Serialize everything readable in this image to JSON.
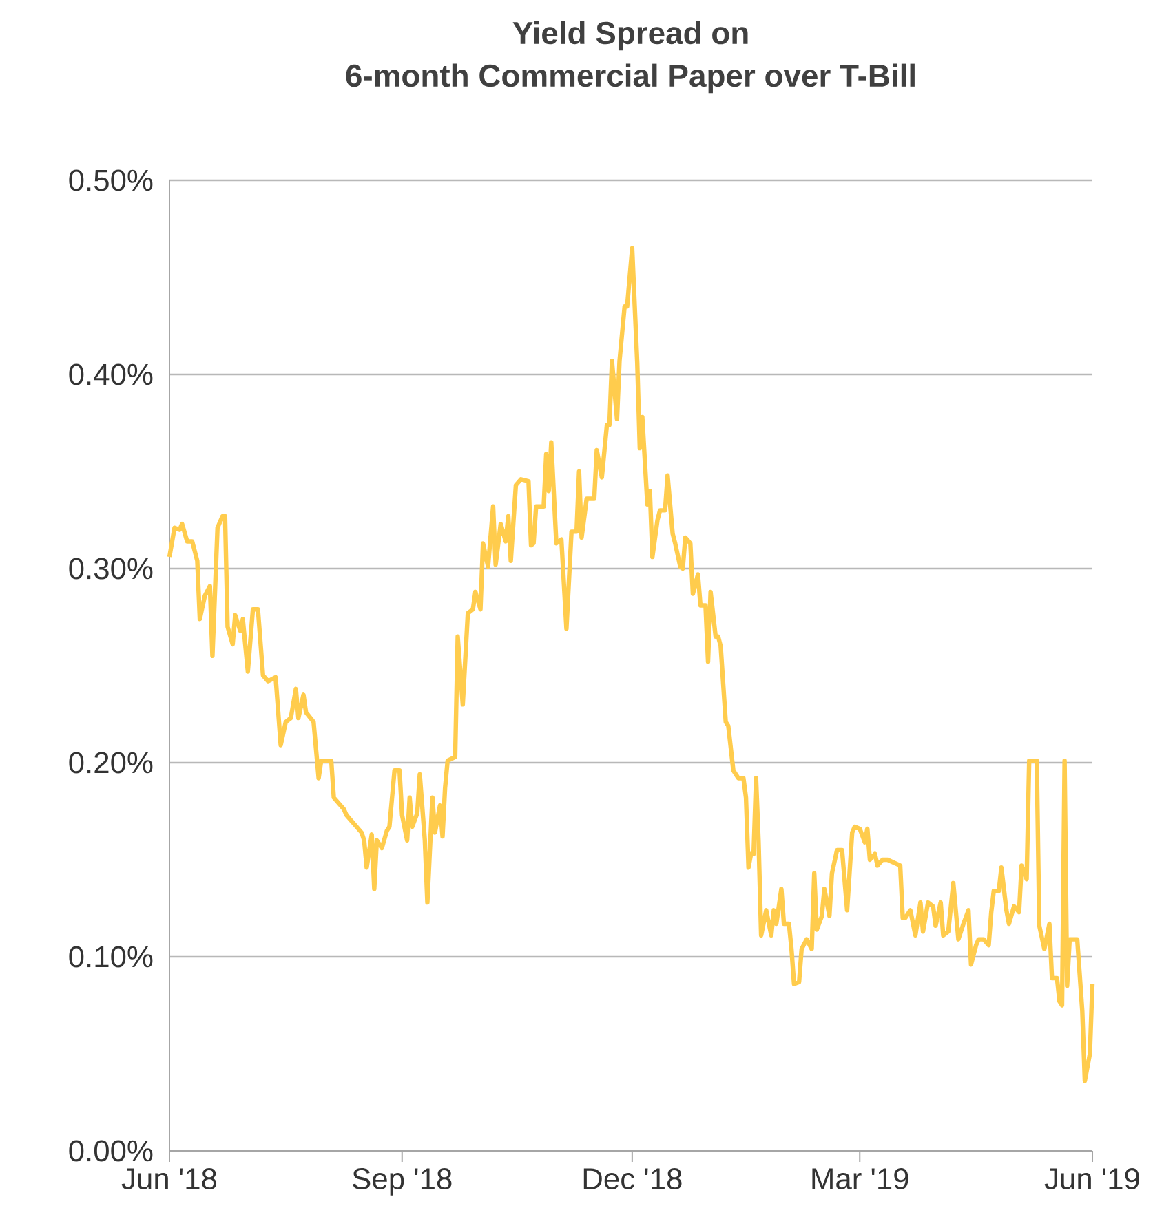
{
  "chart_data": {
    "type": "line",
    "title": "Yield Spread on",
    "subtitle": "6-month Commercial Paper over T-Bill",
    "xlim": [
      "2018-06-01",
      "2019-06-01"
    ],
    "xticks": [
      {
        "value": "2018-06-01",
        "label": "Jun '18"
      },
      {
        "value": "2018-09-01",
        "label": "Sep '18"
      },
      {
        "value": "2018-12-01",
        "label": "Dec '18"
      },
      {
        "value": "2019-03-01",
        "label": "Mar '19"
      },
      {
        "value": "2019-06-01",
        "label": "Jun '19"
      }
    ],
    "ylim": [
      0,
      0.5
    ],
    "yticks": [
      {
        "value": 0,
        "label": "0.00%"
      },
      {
        "value": 0.1,
        "label": "0.10%"
      },
      {
        "value": 0.2,
        "label": "0.20%"
      },
      {
        "value": 0.3,
        "label": "0.30%"
      },
      {
        "value": 0.4,
        "label": "0.40%"
      },
      {
        "value": 0.5,
        "label": "0.50%"
      }
    ],
    "grid": "y",
    "marker": "none",
    "line_style": "solid",
    "series": [
      {
        "color": "#ffcc4d",
        "x": [
          "2018-06-01",
          "2018-06-03",
          "2018-06-05",
          "2018-06-06",
          "2018-06-08",
          "2018-06-10",
          "2018-06-12",
          "2018-06-13",
          "2018-06-15",
          "2018-06-17",
          "2018-06-18",
          "2018-06-20",
          "2018-06-22",
          "2018-06-23",
          "2018-06-24",
          "2018-06-26",
          "2018-06-27",
          "2018-06-29",
          "2018-06-30",
          "2018-07-02",
          "2018-07-04",
          "2018-07-06",
          "2018-07-08",
          "2018-07-10",
          "2018-07-13",
          "2018-07-15",
          "2018-07-17",
          "2018-07-19",
          "2018-07-21",
          "2018-07-22",
          "2018-07-24",
          "2018-07-25",
          "2018-07-28",
          "2018-07-30",
          "2018-07-31",
          "2018-08-04",
          "2018-08-05",
          "2018-08-07",
          "2018-08-09",
          "2018-08-10",
          "2018-08-12",
          "2018-08-14",
          "2018-08-16",
          "2018-08-17",
          "2018-08-18",
          "2018-08-20",
          "2018-08-21",
          "2018-08-22",
          "2018-08-24",
          "2018-08-26",
          "2018-08-27",
          "2018-08-29",
          "2018-08-31",
          "2018-09-01",
          "2018-09-03",
          "2018-09-04",
          "2018-09-05",
          "2018-09-07",
          "2018-09-08",
          "2018-09-10",
          "2018-09-11",
          "2018-09-13",
          "2018-09-14",
          "2018-09-16",
          "2018-09-17",
          "2018-09-18",
          "2018-09-19",
          "2018-09-22",
          "2018-09-23",
          "2018-09-25",
          "2018-09-27",
          "2018-09-29",
          "2018-09-30",
          "2018-10-02",
          "2018-10-03",
          "2018-10-05",
          "2018-10-07",
          "2018-10-08",
          "2018-10-10",
          "2018-10-12",
          "2018-10-13",
          "2018-10-14",
          "2018-10-16",
          "2018-10-18",
          "2018-10-21",
          "2018-10-22",
          "2018-10-23",
          "2018-10-24",
          "2018-10-27",
          "2018-10-28",
          "2018-10-29",
          "2018-10-30",
          "2018-11-01",
          "2018-11-03",
          "2018-11-05",
          "2018-11-07",
          "2018-11-09",
          "2018-11-10",
          "2018-11-11",
          "2018-11-13",
          "2018-11-16",
          "2018-11-17",
          "2018-11-19",
          "2018-11-21",
          "2018-11-22",
          "2018-11-23",
          "2018-11-25",
          "2018-11-26",
          "2018-11-28",
          "2018-11-29",
          "2018-12-01",
          "2018-12-03",
          "2018-12-04",
          "2018-12-05",
          "2018-12-07",
          "2018-12-08",
          "2018-12-09",
          "2018-12-11",
          "2018-12-12",
          "2018-12-14",
          "2018-12-15",
          "2018-12-17",
          "2018-12-18",
          "2018-12-20",
          "2018-12-21",
          "2018-12-22",
          "2018-12-24",
          "2018-12-25",
          "2018-12-27",
          "2018-12-28",
          "2018-12-30",
          "2018-12-31",
          "2019-01-01",
          "2019-01-03",
          "2019-01-04",
          "2019-01-05",
          "2019-01-07",
          "2019-01-08",
          "2019-01-10",
          "2019-01-12",
          "2019-01-14",
          "2019-01-15",
          "2019-01-16",
          "2019-01-17",
          "2019-01-18",
          "2019-01-19",
          "2019-01-20",
          "2019-01-21",
          "2019-01-23",
          "2019-01-25",
          "2019-01-26",
          "2019-01-27",
          "2019-01-29",
          "2019-01-30",
          "2019-02-01",
          "2019-02-02",
          "2019-02-03",
          "2019-02-05",
          "2019-02-06",
          "2019-02-08",
          "2019-02-10",
          "2019-02-11",
          "2019-02-12",
          "2019-02-14",
          "2019-02-15",
          "2019-02-17",
          "2019-02-18",
          "2019-02-20",
          "2019-02-22",
          "2019-02-24",
          "2019-02-26",
          "2019-02-27",
          "2019-03-01",
          "2019-03-03",
          "2019-03-04",
          "2019-03-05",
          "2019-03-07",
          "2019-03-08",
          "2019-03-10",
          "2019-03-12",
          "2019-03-17",
          "2019-03-18",
          "2019-03-19",
          "2019-03-21",
          "2019-03-23",
          "2019-03-25",
          "2019-03-26",
          "2019-03-28",
          "2019-03-30",
          "2019-03-31",
          "2019-04-02",
          "2019-04-03",
          "2019-04-05",
          "2019-04-07",
          "2019-04-09",
          "2019-04-11",
          "2019-04-13",
          "2019-04-14",
          "2019-04-16",
          "2019-04-17",
          "2019-04-19",
          "2019-04-21",
          "2019-04-22",
          "2019-04-23",
          "2019-04-25",
          "2019-04-26",
          "2019-04-28",
          "2019-04-29",
          "2019-05-01",
          "2019-05-03",
          "2019-05-04",
          "2019-05-06",
          "2019-05-07",
          "2019-05-09",
          "2019-05-10",
          "2019-05-11",
          "2019-05-13",
          "2019-05-15",
          "2019-05-16",
          "2019-05-18",
          "2019-05-19",
          "2019-05-20",
          "2019-05-21",
          "2019-05-22",
          "2019-05-23",
          "2019-05-26",
          "2019-05-28",
          "2019-05-29",
          "2019-05-31",
          "2019-06-01"
        ],
        "values": [
          0.306,
          0.321,
          0.32,
          0.323,
          0.314,
          0.314,
          0.304,
          0.274,
          0.286,
          0.291,
          0.255,
          0.321,
          0.327,
          0.327,
          0.27,
          0.261,
          0.276,
          0.268,
          0.274,
          0.247,
          0.279,
          0.279,
          0.245,
          0.242,
          0.244,
          0.209,
          0.221,
          0.223,
          0.238,
          0.223,
          0.235,
          0.226,
          0.221,
          0.192,
          0.201,
          0.201,
          0.182,
          0.179,
          0.176,
          0.173,
          0.17,
          0.167,
          0.164,
          0.16,
          0.146,
          0.163,
          0.135,
          0.16,
          0.156,
          0.165,
          0.167,
          0.196,
          0.196,
          0.173,
          0.16,
          0.182,
          0.167,
          0.174,
          0.194,
          0.16,
          0.128,
          0.182,
          0.164,
          0.178,
          0.162,
          0.187,
          0.201,
          0.203,
          0.265,
          0.23,
          0.277,
          0.279,
          0.288,
          0.279,
          0.313,
          0.301,
          0.332,
          0.302,
          0.323,
          0.314,
          0.327,
          0.304,
          0.343,
          0.346,
          0.345,
          0.312,
          0.313,
          0.332,
          0.332,
          0.359,
          0.34,
          0.365,
          0.313,
          0.315,
          0.269,
          0.319,
          0.319,
          0.35,
          0.316,
          0.336,
          0.336,
          0.361,
          0.347,
          0.374,
          0.374,
          0.407,
          0.377,
          0.407,
          0.435,
          0.435,
          0.465,
          0.406,
          0.362,
          0.378,
          0.333,
          0.34,
          0.306,
          0.325,
          0.33,
          0.33,
          0.348,
          0.318,
          0.313,
          0.301,
          0.3,
          0.316,
          0.313,
          0.287,
          0.297,
          0.281,
          0.281,
          0.252,
          0.288,
          0.265,
          0.265,
          0.26,
          0.221,
          0.219,
          0.196,
          0.192,
          0.192,
          0.182,
          0.146,
          0.153,
          0.153,
          0.192,
          0.159,
          0.111,
          0.124,
          0.111,
          0.124,
          0.117,
          0.135,
          0.117,
          0.117,
          0.104,
          0.086,
          0.087,
          0.104,
          0.109,
          0.104,
          0.143,
          0.114,
          0.121,
          0.135,
          0.121,
          0.143,
          0.155,
          0.155,
          0.124,
          0.164,
          0.167,
          0.166,
          0.159,
          0.166,
          0.15,
          0.153,
          0.147,
          0.15,
          0.15,
          0.147,
          0.12,
          0.12,
          0.124,
          0.111,
          0.128,
          0.113,
          0.128,
          0.126,
          0.116,
          0.128,
          0.111,
          0.113,
          0.138,
          0.109,
          0.117,
          0.124,
          0.096,
          0.106,
          0.109,
          0.109,
          0.106,
          0.123,
          0.134,
          0.134,
          0.146,
          0.124,
          0.117,
          0.126,
          0.123,
          0.147,
          0.14,
          0.201,
          0.201,
          0.201,
          0.116,
          0.104,
          0.117,
          0.089,
          0.089,
          0.077,
          0.075,
          0.201,
          0.085,
          0.109,
          0.109,
          0.072,
          0.036,
          0.05,
          0.086
        ]
      }
    ]
  }
}
